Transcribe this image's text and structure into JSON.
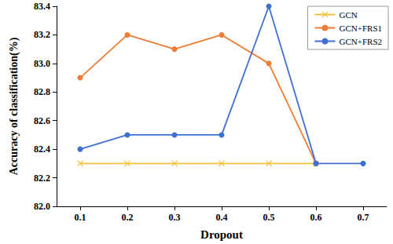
{
  "chart_data": {
    "type": "line",
    "x_label": "Dropout",
    "y_label": "Accuracy of classification(%)",
    "categories": [
      "0.1",
      "0.2",
      "0.3",
      "0.4",
      "0.5",
      "0.6",
      "0.7"
    ],
    "series": [
      {
        "name": "GCN",
        "color": "#f2c23a",
        "marker": "x",
        "line_style": "solid",
        "values": [
          82.3,
          82.3,
          82.3,
          82.3,
          82.3,
          82.3,
          null
        ]
      },
      {
        "name": "GCN+FRS1",
        "color": "#ee7c33",
        "marker": "circle",
        "line_style": "solid",
        "values": [
          82.9,
          83.2,
          83.1,
          83.2,
          83.0,
          82.3,
          null
        ]
      },
      {
        "name": "GCN+FRS2",
        "color": "#3f6fd1",
        "marker": "circle",
        "line_style": "solid",
        "values": [
          82.4,
          82.5,
          82.5,
          82.5,
          83.4,
          82.3,
          82.3
        ]
      }
    ],
    "ylim": [
      82,
      83.4
    ],
    "yticks": [
      {
        "value": 82,
        "label": "82.0"
      },
      82.2,
      82.4,
      82.6,
      82.8,
      {
        "value": 83,
        "label": "83.0"
      },
      83.2,
      83.4
    ],
    "grid": false,
    "legend": "upper right"
  }
}
